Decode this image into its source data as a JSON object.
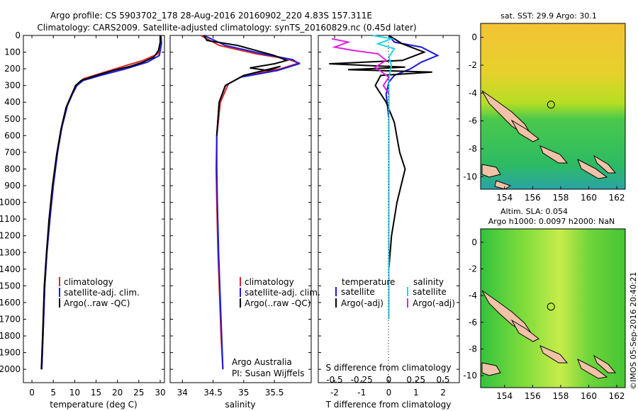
{
  "title": {
    "line1": "Argo profile: CS 5903702_178 28-Aug-2016 20160902_220 4.83S 157.311E",
    "line2": "Climatology: CARS2009. Satellite-adjusted climatology: synTS_20160829.nc (0.45d later)"
  },
  "colors": {
    "climatology": "#dd2222",
    "satellite": "#1a1add",
    "argo": "#000000",
    "cyan": "#22d4e8",
    "magenta": "#e020e0"
  },
  "depth_axis": {
    "ticks": [
      "0",
      "100",
      "200",
      "300",
      "400",
      "500",
      "600",
      "700",
      "800",
      "900",
      "1000",
      "1100",
      "1200",
      "1300",
      "1400",
      "1500",
      "1600",
      "1700",
      "1800",
      "1900",
      "2000"
    ],
    "range": [
      0,
      2080
    ]
  },
  "temperature_panel": {
    "xlabel": "temperature (deg C)",
    "xticks": [
      "0",
      "5",
      "10",
      "15",
      "20",
      "25",
      "30"
    ],
    "xlim": [
      -2,
      31
    ],
    "legend": [
      "climatology",
      "satellite-adj. clim.",
      "Argo(..raw -QC)"
    ],
    "series": [
      {
        "name": "climatology",
        "color": "#dd2222",
        "points": [
          [
            30.1,
            0
          ],
          [
            30.0,
            60
          ],
          [
            29.5,
            110
          ],
          [
            26,
            150
          ],
          [
            22,
            180
          ],
          [
            17,
            220
          ],
          [
            12,
            260
          ],
          [
            10.5,
            300
          ],
          [
            9.5,
            350
          ],
          [
            8.3,
            420
          ],
          [
            7.0,
            550
          ],
          [
            6.0,
            700
          ],
          [
            5.0,
            900
          ],
          [
            4.2,
            1100
          ],
          [
            3.5,
            1300
          ],
          [
            3.0,
            1500
          ],
          [
            2.6,
            1800
          ],
          [
            2.3,
            2000
          ]
        ]
      },
      {
        "name": "satellite-adj. clim.",
        "color": "#1a1add",
        "points": [
          [
            30.2,
            0
          ],
          [
            30.3,
            50
          ],
          [
            29.8,
            120
          ],
          [
            27,
            160
          ],
          [
            22,
            200
          ],
          [
            16,
            240
          ],
          [
            12,
            270
          ],
          [
            10.5,
            300
          ],
          [
            9.5,
            350
          ],
          [
            8.3,
            420
          ],
          [
            7.0,
            550
          ],
          [
            6.0,
            700
          ],
          [
            5.0,
            900
          ],
          [
            4.2,
            1100
          ],
          [
            3.5,
            1300
          ],
          [
            3.0,
            1500
          ],
          [
            2.6,
            1800
          ],
          [
            2.3,
            2000
          ]
        ]
      },
      {
        "name": "Argo(..raw -QC)",
        "color": "#000000",
        "points": [
          [
            30.0,
            0
          ],
          [
            30.0,
            40
          ],
          [
            29.6,
            90
          ],
          [
            28.5,
            130
          ],
          [
            26,
            160
          ],
          [
            23,
            185
          ],
          [
            19,
            210
          ],
          [
            15,
            240
          ],
          [
            11.5,
            270
          ],
          [
            10.2,
            300
          ],
          [
            9.2,
            360
          ],
          [
            8.0,
            430
          ],
          [
            6.8,
            560
          ],
          [
            5.8,
            710
          ],
          [
            4.8,
            900
          ],
          [
            4.0,
            1100
          ],
          [
            3.4,
            1300
          ],
          [
            2.9,
            1500
          ],
          [
            2.5,
            1800
          ],
          [
            2.2,
            2000
          ]
        ]
      }
    ]
  },
  "salinity_panel": {
    "xlabel": "salinity",
    "xticks": [
      "34",
      "34.5",
      "35",
      "35.5"
    ],
    "xlim": [
      33.8,
      36.1
    ],
    "legend": [
      "climatology",
      "satellite-adj. clim.",
      "Argo(..raw -QC)"
    ],
    "annotation1": "Argo Australia",
    "annotation2": "PI: Susan Wijffels",
    "series": [
      {
        "name": "climatology",
        "color": "#dd2222",
        "points": [
          [
            34.3,
            0
          ],
          [
            34.6,
            60
          ],
          [
            35.2,
            110
          ],
          [
            35.7,
            140
          ],
          [
            35.9,
            165
          ],
          [
            35.6,
            200
          ],
          [
            35.0,
            240
          ],
          [
            34.75,
            290
          ],
          [
            34.62,
            400
          ],
          [
            34.56,
            600
          ],
          [
            34.55,
            800
          ],
          [
            34.56,
            1000
          ],
          [
            34.58,
            1300
          ],
          [
            34.61,
            1600
          ],
          [
            34.63,
            1800
          ],
          [
            34.66,
            2000
          ]
        ]
      },
      {
        "name": "satellite-adj. clim.",
        "color": "#1a1add",
        "points": [
          [
            34.35,
            0
          ],
          [
            34.7,
            60
          ],
          [
            35.3,
            110
          ],
          [
            35.8,
            145
          ],
          [
            35.9,
            170
          ],
          [
            35.55,
            210
          ],
          [
            34.95,
            250
          ],
          [
            34.7,
            300
          ],
          [
            34.6,
            400
          ],
          [
            34.56,
            600
          ],
          [
            34.56,
            800
          ],
          [
            34.57,
            1000
          ],
          [
            34.59,
            1300
          ],
          [
            34.62,
            1600
          ],
          [
            34.64,
            1800
          ],
          [
            34.66,
            2000
          ]
        ]
      },
      {
        "name": "Argo(..raw -QC)",
        "color": "#000000",
        "points": [
          [
            34.35,
            0
          ],
          [
            34.4,
            30
          ],
          [
            34.9,
            60
          ],
          [
            35.2,
            90
          ],
          [
            35.5,
            120
          ],
          [
            35.7,
            150
          ],
          [
            35.5,
            170
          ],
          [
            35.1,
            195
          ],
          [
            35.4,
            210
          ],
          [
            35.6,
            185
          ],
          [
            35.0,
            240
          ],
          [
            34.7,
            300
          ],
          [
            34.6,
            400
          ],
          [
            34.56,
            600
          ]
        ]
      }
    ]
  },
  "difference_panel": {
    "top_xlabel": "S difference from climatology",
    "top_xticks": [
      "-0.5",
      "-0.25",
      "0",
      "0.25",
      "0.5"
    ],
    "xlabel": "T difference from climatology",
    "xticks": [
      "-2",
      "-1",
      "0",
      "1",
      "2"
    ],
    "xlim": [
      -2.6,
      2.6
    ],
    "legend_temperature_header": "temperature",
    "legend_salinity_header": "salinity",
    "legend_temperature": [
      "satellite",
      "Argo(-adj)"
    ],
    "legend_salinity": [
      "satellite",
      "Argo(-adj)"
    ],
    "series": [
      {
        "name": "temperature satellite",
        "color": "#1a1add",
        "points": [
          [
            0,
            0
          ],
          [
            0.2,
            40
          ],
          [
            1.2,
            70
          ],
          [
            1.8,
            120
          ],
          [
            1.2,
            160
          ],
          [
            0.8,
            200
          ],
          [
            0.2,
            240
          ],
          [
            0,
            280
          ],
          [
            -0.1,
            350
          ],
          [
            0,
            500
          ],
          [
            0,
            800
          ],
          [
            0,
            1200
          ],
          [
            0,
            1600
          ],
          [
            0,
            1700
          ]
        ]
      },
      {
        "name": "temperature Argo(-adj)",
        "color": "#000000",
        "points": [
          [
            0,
            0
          ],
          [
            0.5,
            50
          ],
          [
            1.3,
            100
          ],
          [
            0.5,
            150
          ],
          [
            -2.2,
            170
          ],
          [
            0.6,
            190
          ],
          [
            -1.5,
            205
          ],
          [
            1.6,
            220
          ],
          [
            -0.3,
            240
          ],
          [
            -0.5,
            300
          ],
          [
            -0.1,
            400
          ],
          [
            0.2,
            520
          ],
          [
            0.4,
            700
          ],
          [
            0.6,
            800
          ],
          [
            0.3,
            1000
          ],
          [
            0.1,
            1200
          ],
          [
            0,
            1400
          ]
        ]
      },
      {
        "name": "salinity satellite",
        "color": "#22d4e8",
        "points": [
          [
            -0.6,
            0
          ],
          [
            0.1,
            20
          ],
          [
            -0.4,
            50
          ],
          [
            0.2,
            80
          ],
          [
            0,
            130
          ],
          [
            0.1,
            180
          ],
          [
            0,
            250
          ],
          [
            0,
            400
          ],
          [
            0,
            700
          ],
          [
            0,
            1000
          ],
          [
            0,
            1300
          ],
          [
            0,
            1700
          ]
        ]
      },
      {
        "name": "salinity Argo(-adj)",
        "color": "#e020e0",
        "points": [
          [
            -2.1,
            20
          ],
          [
            -1.5,
            40
          ],
          [
            -2.0,
            70
          ],
          [
            -1.3,
            90
          ],
          [
            -0.4,
            110
          ],
          [
            -0.1,
            150
          ],
          [
            -0.5,
            190
          ],
          [
            0,
            250
          ],
          [
            -0.2,
            300
          ],
          [
            0,
            350
          ]
        ]
      }
    ]
  },
  "map_sst": {
    "title": "sat. SST: 29.9 Argo: 30.1",
    "xticks": [
      "154",
      "156",
      "158",
      "160",
      "162"
    ],
    "yticks": [
      "0",
      "-2",
      "-4",
      "-6",
      "-8",
      "-10"
    ],
    "lon_range": [
      152.3,
      162.6
    ],
    "lat_range": [
      -10.9,
      1.0
    ],
    "argo_position": {
      "lon": 157.311,
      "lat": -4.83
    }
  },
  "map_sla": {
    "title_line1": "Altim. SLA: 0.054",
    "title_line2": "Argo h1000: 0.0097 h2000: NaN",
    "xticks": [
      "154",
      "156",
      "158",
      "160",
      "162"
    ],
    "yticks": [
      "0",
      "-2",
      "-4",
      "-6",
      "-8",
      "-10"
    ],
    "lon_range": [
      152.3,
      162.6
    ],
    "lat_range": [
      -10.9,
      1.0
    ],
    "argo_position": {
      "lon": 157.311,
      "lat": -4.83
    }
  },
  "side_label": "©IMOS 05-Sep-2016 20:40:21"
}
